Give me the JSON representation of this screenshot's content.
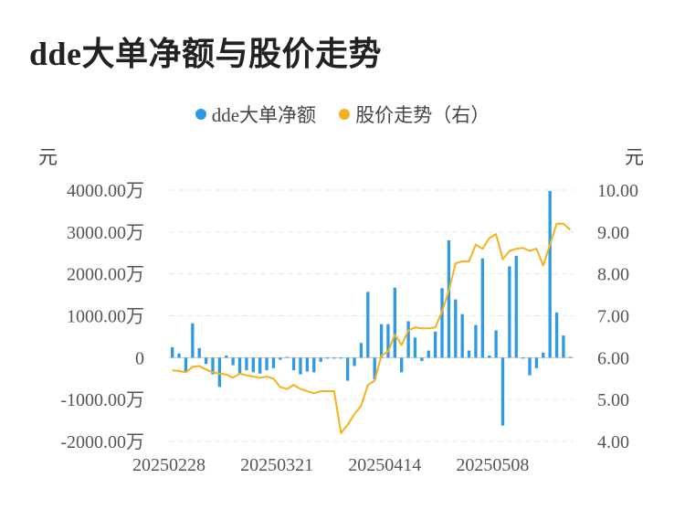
{
  "title": "dde大单净额与股价走势",
  "legend": [
    {
      "name": "dde大单净额",
      "color": "#2e9ae6"
    },
    {
      "name": "股价走势（右）",
      "color": "#f5b21c"
    }
  ],
  "units": {
    "left": "元",
    "right": "元"
  },
  "chart_data": {
    "type": "bar+line",
    "title": "dde大单净额与股价走势",
    "y_left": {
      "unit": "元",
      "ylim": [
        -2000,
        4000
      ],
      "ticks": [
        4000,
        3000,
        2000,
        1000,
        0,
        -1000,
        -2000
      ],
      "tick_labels": [
        "4000.00万",
        "3000.00万",
        "2000.00万",
        "1000.00万",
        "0",
        "-1000.00万",
        "-2000.00万"
      ]
    },
    "y_right": {
      "unit": "元",
      "ylim": [
        4,
        10
      ],
      "ticks": [
        10,
        9,
        8,
        7,
        6,
        5,
        4
      ],
      "tick_labels": [
        "10.00",
        "9.00",
        "8.00",
        "7.00",
        "6.00",
        "5.00",
        "4.00"
      ]
    },
    "x_tick_labels": [
      {
        "index": 0,
        "label": "20250228"
      },
      {
        "index": 16,
        "label": "20250321"
      },
      {
        "index": 32,
        "label": "20250414"
      },
      {
        "index": 48,
        "label": "20250508"
      }
    ],
    "grid": true,
    "legend_position": "top-center",
    "series": [
      {
        "name": "dde大单净额",
        "type": "bar",
        "axis": "left",
        "color": "#2e9ae6",
        "values": [
          250,
          100,
          -350,
          820,
          230,
          -150,
          -400,
          -700,
          50,
          -180,
          -400,
          -300,
          -350,
          -380,
          -300,
          -250,
          -50,
          20,
          -300,
          -400,
          -330,
          -350,
          -100,
          0,
          0,
          -10,
          -550,
          -200,
          350,
          1570,
          -520,
          800,
          800,
          1670,
          -350,
          870,
          480,
          -80,
          170,
          620,
          1660,
          2800,
          1390,
          1040,
          170,
          780,
          2370,
          50,
          650,
          -1620,
          2180,
          2430,
          0,
          -420,
          -250,
          120,
          3980,
          1080,
          530,
          20
        ]
      },
      {
        "name": "股价走势（右）",
        "type": "line",
        "axis": "right",
        "color": "#f5b21c",
        "values": [
          5.7,
          5.68,
          5.65,
          5.78,
          5.8,
          5.72,
          5.65,
          5.62,
          5.6,
          5.52,
          5.62,
          5.58,
          5.55,
          5.52,
          5.55,
          5.5,
          5.3,
          5.25,
          5.35,
          5.25,
          5.2,
          5.15,
          5.2,
          5.2,
          5.2,
          4.2,
          4.4,
          4.65,
          4.85,
          5.35,
          5.45,
          6.05,
          6.15,
          6.55,
          6.3,
          6.65,
          6.72,
          6.7,
          6.7,
          6.72,
          7.1,
          7.6,
          8.25,
          8.3,
          8.3,
          8.7,
          8.6,
          8.85,
          8.95,
          8.35,
          8.55,
          8.6,
          8.62,
          8.55,
          8.6,
          8.2,
          8.7,
          9.2,
          9.2,
          9.05
        ]
      }
    ]
  }
}
